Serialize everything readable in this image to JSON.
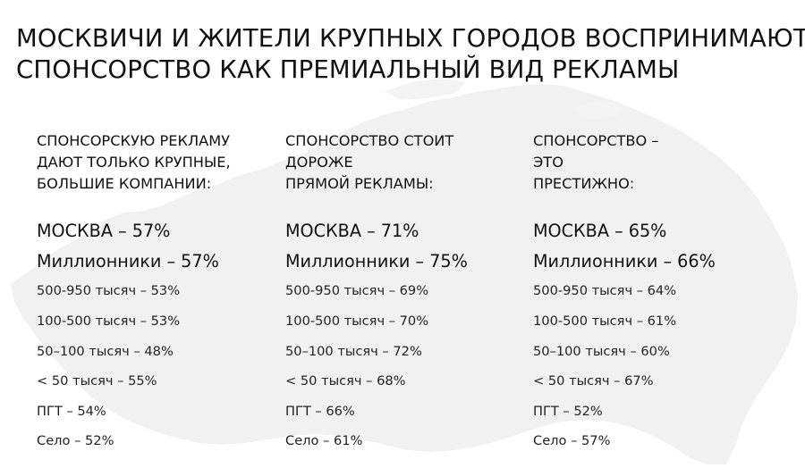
{
  "title": {
    "line1": "МОСКВИЧИ И ЖИТЕЛИ КРУПНЫХ ГОРОДОВ ВОСПРИНИМАЮТ",
    "line2": "СПОНСОРСТВО КАК ПРЕМИАЛЬНЫЙ ВИД РЕКЛАМЫ"
  },
  "background_icon": "russia-map-silhouette",
  "colors": {
    "text": "#111111",
    "map": "#f0f0f0"
  },
  "columns": [
    {
      "heading": [
        "СПОНСОРСКУЮ РЕКЛАМУ",
        "ДАЮТ ТОЛЬКО КРУПНЫЕ,",
        "БОЛЬШИЕ КОМПАНИИ:"
      ],
      "main": [
        "МОСКВА  – 57%",
        "Миллионники – 57%"
      ],
      "rows": [
        "500-950 тысяч  – 53%",
        "100-500 тысяч –   53%",
        "50–100 тысяч – 48%",
        "< 50 тысяч   – 55%",
        "ПГТ – 54%",
        "Село  – 52%"
      ]
    },
    {
      "heading": [
        "СПОНСОРСТВО СТОИТ",
        "ДОРОЖЕ",
        "ПРЯМОЙ РЕКЛАМЫ:"
      ],
      "main": [
        "МОСКВА  – 71%",
        "Миллионники – 75%"
      ],
      "rows": [
        "500-950 тысяч  – 69%",
        "100-500 тысяч –   70%",
        "50–100 тысяч – 72%",
        "< 50 тысяч   – 68%",
        "ПГТ – 66%",
        "Село  – 61%"
      ]
    },
    {
      "heading": [
        "СПОНСОРСТВО –",
        "ЭТО",
        "ПРЕСТИЖНО:"
      ],
      "main": [
        "МОСКВА  – 65%",
        "Миллионники – 66%"
      ],
      "rows": [
        "500-950 тысяч  – 64%",
        "100-500 тысяч –   61%",
        "50–100 тысяч – 60%",
        "< 50 тысяч   – 67%",
        "ПГТ – 52%",
        "Село  – 57%"
      ]
    }
  ]
}
